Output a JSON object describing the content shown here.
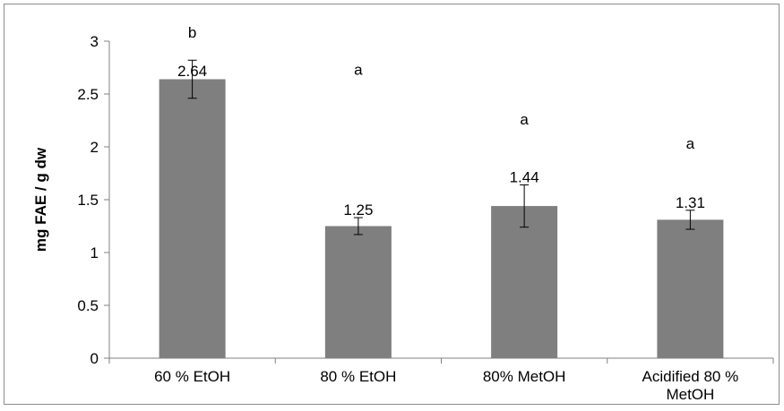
{
  "chart_data": {
    "type": "bar",
    "title": "",
    "xlabel": "",
    "ylabel": "mg FAE / g dw",
    "ylim": [
      0,
      3
    ],
    "yticks": [
      "0",
      "0.5",
      "1",
      "1.5",
      "2",
      "2.5",
      "3"
    ],
    "grid": false,
    "categories": [
      [
        "60 % EtOH"
      ],
      [
        "80 % EtOH"
      ],
      [
        "80% MetOH"
      ],
      [
        "Acidified 80 %",
        "MetOH"
      ]
    ],
    "values": [
      2.64,
      1.25,
      1.44,
      1.31
    ],
    "value_labels": [
      "2.64",
      "1.25",
      "1.44",
      "1.31"
    ],
    "error": [
      0.18,
      0.08,
      0.2,
      0.09
    ],
    "significance_letters": [
      "b",
      "a",
      "a",
      "a"
    ],
    "letter_heights": [
      3.0,
      2.65,
      2.18,
      1.95
    ],
    "colors": {
      "bar": "#7f7f7f",
      "axis": "#808080"
    }
  }
}
